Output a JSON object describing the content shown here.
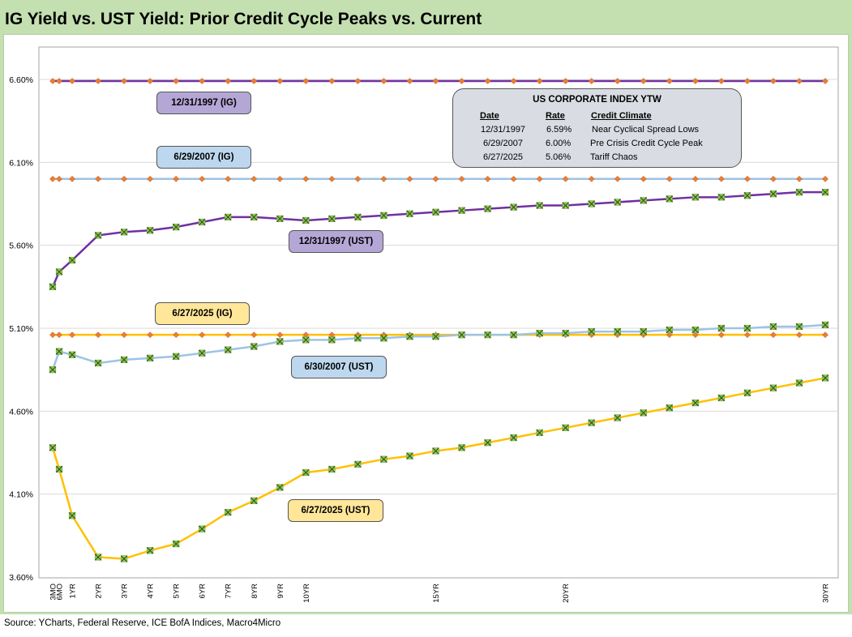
{
  "title": "IG Yield vs. UST Yield: Prior Credit Cycle Peaks vs. Current",
  "source": "Source: YCharts, Federal Reserve, ICE BofA Indices, Macro4Micro",
  "colors": {
    "title_bg": "#c4dfb0",
    "purple": "#7030a0",
    "light_blue": "#9dc3e6",
    "yellow": "#ffc000",
    "ig_marker": "#ed7d31",
    "ust_marker": "#92d050",
    "ust_marker_cross": "#375623",
    "purple_box": "#b4a7d6",
    "blue_box": "#bdd7ee",
    "yellow_box": "#ffe699",
    "info_box": "#d9dde3"
  },
  "labels": {
    "ig_1997": "12/31/1997 (IG)",
    "ig_2007": "6/29/2007 (IG)",
    "ust_1997": "12/31/1997 (UST)",
    "ig_2025": "6/27/2025 (IG)",
    "ust_2007": "6/30/2007 (UST)",
    "ust_2025": "6/27/2025 (UST)"
  },
  "info_box": {
    "title": "US CORPORATE  INDEX YTW",
    "headers": [
      "Date",
      "Rate",
      "Credit Climate"
    ],
    "rows": [
      [
        "12/31/1997",
        "6.59%",
        "Near Cyclical Spread Lows"
      ],
      [
        "6/29/2007",
        "6.00%",
        "Pre Crisis Credit Cycle Peak"
      ],
      [
        "6/27/2025",
        "5.06%",
        "Tariff Chaos"
      ]
    ]
  },
  "chart_data": {
    "type": "line",
    "x_positions": [
      0.25,
      0.5,
      1,
      2,
      3,
      4,
      5,
      6,
      7,
      8,
      9,
      10,
      11,
      12,
      13,
      14,
      15,
      16,
      17,
      18,
      19,
      20,
      21,
      22,
      23,
      24,
      25,
      26,
      27,
      28,
      29,
      30
    ],
    "tick_labels": [
      "3MO",
      "6MO",
      "1YR",
      "2YR",
      "3YR",
      "4YR",
      "5YR",
      "6YR",
      "7YR",
      "8YR",
      "9YR",
      "10YR",
      "",
      "",
      "",
      "",
      "15YR",
      "",
      "",
      "",
      "",
      "20YR",
      "",
      "",
      "",
      "",
      "",
      "",
      "",
      "",
      "",
      "30YR"
    ],
    "yticks": [
      "3.60%",
      "4.10%",
      "4.60%",
      "5.10%",
      "5.60%",
      "6.10%",
      "6.60%"
    ],
    "ylim": [
      3.6,
      6.6
    ],
    "grid": true,
    "series": [
      {
        "name": "12/31/1997 (IG)",
        "kind": "ig",
        "color": "#7030a0",
        "values": [
          6.59,
          6.59,
          6.59,
          6.59,
          6.59,
          6.59,
          6.59,
          6.59,
          6.59,
          6.59,
          6.59,
          6.59,
          6.59,
          6.59,
          6.59,
          6.59,
          6.59,
          6.59,
          6.59,
          6.59,
          6.59,
          6.59,
          6.59,
          6.59,
          6.59,
          6.59,
          6.59,
          6.59,
          6.59,
          6.59,
          6.59,
          6.59
        ]
      },
      {
        "name": "6/29/2007 (IG)",
        "kind": "ig",
        "color": "#9dc3e6",
        "values": [
          6.0,
          6.0,
          6.0,
          6.0,
          6.0,
          6.0,
          6.0,
          6.0,
          6.0,
          6.0,
          6.0,
          6.0,
          6.0,
          6.0,
          6.0,
          6.0,
          6.0,
          6.0,
          6.0,
          6.0,
          6.0,
          6.0,
          6.0,
          6.0,
          6.0,
          6.0,
          6.0,
          6.0,
          6.0,
          6.0,
          6.0,
          6.0
        ]
      },
      {
        "name": "6/27/2025 (IG)",
        "kind": "ig",
        "color": "#ffc000",
        "values": [
          5.06,
          5.06,
          5.06,
          5.06,
          5.06,
          5.06,
          5.06,
          5.06,
          5.06,
          5.06,
          5.06,
          5.06,
          5.06,
          5.06,
          5.06,
          5.06,
          5.06,
          5.06,
          5.06,
          5.06,
          5.06,
          5.06,
          5.06,
          5.06,
          5.06,
          5.06,
          5.06,
          5.06,
          5.06,
          5.06,
          5.06,
          5.06
        ]
      },
      {
        "name": "12/31/1997 (UST)",
        "kind": "ust",
        "color": "#7030a0",
        "values": [
          5.35,
          5.44,
          5.51,
          5.66,
          5.68,
          5.69,
          5.71,
          5.74,
          5.77,
          5.77,
          5.76,
          5.75,
          5.76,
          5.77,
          5.78,
          5.79,
          5.8,
          5.81,
          5.82,
          5.83,
          5.84,
          5.84,
          5.85,
          5.86,
          5.87,
          5.88,
          5.89,
          5.89,
          5.9,
          5.91,
          5.92,
          5.92
        ]
      },
      {
        "name": "6/30/2007 (UST)",
        "kind": "ust",
        "color": "#9dc3e6",
        "values": [
          4.85,
          4.96,
          4.94,
          4.89,
          4.91,
          4.92,
          4.93,
          4.95,
          4.97,
          4.99,
          5.02,
          5.03,
          5.03,
          5.04,
          5.04,
          5.05,
          5.05,
          5.06,
          5.06,
          5.06,
          5.07,
          5.07,
          5.08,
          5.08,
          5.08,
          5.09,
          5.09,
          5.1,
          5.1,
          5.11,
          5.11,
          5.12
        ]
      },
      {
        "name": "6/27/2025 (UST)",
        "kind": "ust",
        "color": "#ffc000",
        "values": [
          4.38,
          4.25,
          3.97,
          3.72,
          3.71,
          3.76,
          3.8,
          3.89,
          3.99,
          4.06,
          4.14,
          4.23,
          4.25,
          4.28,
          4.31,
          4.33,
          4.36,
          4.38,
          4.41,
          4.44,
          4.47,
          4.5,
          4.53,
          4.56,
          4.59,
          4.62,
          4.65,
          4.68,
          4.71,
          4.74,
          4.77,
          4.8
        ]
      }
    ]
  }
}
